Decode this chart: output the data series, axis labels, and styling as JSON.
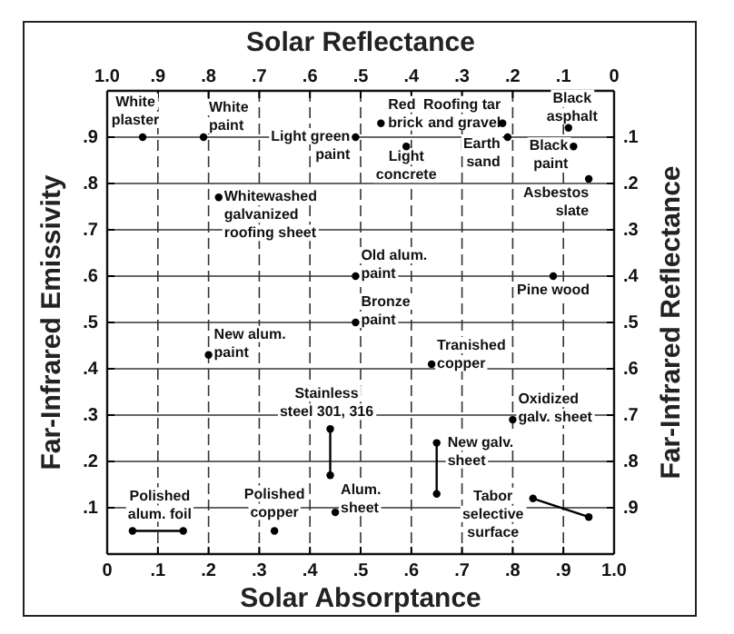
{
  "chart_data": {
    "type": "scatter",
    "xlabel": "Solar Absorptance",
    "x2label": "Solar Reflectance",
    "ylabel": "Far-Infrared Emissivity",
    "y2label": "Far-Infrared Reflectance",
    "xlim": [
      0,
      1
    ],
    "xticks": [
      {
        "value": 0,
        "label": "0"
      },
      {
        "value": 0.1,
        "label": ".1"
      },
      {
        "value": 0.2,
        "label": ".2"
      },
      {
        "value": 0.3,
        "label": ".3"
      },
      {
        "value": 0.4,
        "label": ".4"
      },
      {
        "value": 0.5,
        "label": ".5"
      },
      {
        "value": 0.6,
        "label": ".6"
      },
      {
        "value": 0.7,
        "label": ".7"
      },
      {
        "value": 0.8,
        "label": ".8"
      },
      {
        "value": 0.9,
        "label": ".9"
      },
      {
        "value": 1,
        "label": "1.0"
      }
    ],
    "x2lim": [
      1,
      0
    ],
    "x2ticks": [
      {
        "value": 1,
        "label": "1.0"
      },
      {
        "value": 0.9,
        "label": ".9"
      },
      {
        "value": 0.8,
        "label": ".8"
      },
      {
        "value": 0.7,
        "label": ".7"
      },
      {
        "value": 0.6,
        "label": ".6"
      },
      {
        "value": 0.5,
        "label": ".5"
      },
      {
        "value": 0.4,
        "label": ".4"
      },
      {
        "value": 0.3,
        "label": ".3"
      },
      {
        "value": 0.2,
        "label": ".2"
      },
      {
        "value": 0.1,
        "label": ".1"
      },
      {
        "value": 0,
        "label": "0"
      }
    ],
    "ylim": [
      0,
      1
    ],
    "yticks": [
      {
        "value": 0.1,
        "label": ".1"
      },
      {
        "value": 0.2,
        "label": ".2"
      },
      {
        "value": 0.3,
        "label": ".3"
      },
      {
        "value": 0.4,
        "label": ".4"
      },
      {
        "value": 0.5,
        "label": ".5"
      },
      {
        "value": 0.6,
        "label": ".6"
      },
      {
        "value": 0.7,
        "label": ".7"
      },
      {
        "value": 0.8,
        "label": ".8"
      },
      {
        "value": 0.9,
        "label": ".9"
      }
    ],
    "y2lim": [
      1,
      0
    ],
    "y2ticks": [
      {
        "value": 0.1,
        "label": ".1"
      },
      {
        "value": 0.2,
        "label": ".2"
      },
      {
        "value": 0.3,
        "label": ".3"
      },
      {
        "value": 0.4,
        "label": ".4"
      },
      {
        "value": 0.5,
        "label": ".5"
      },
      {
        "value": 0.6,
        "label": ".6"
      },
      {
        "value": 0.7,
        "label": ".7"
      },
      {
        "value": 0.8,
        "label": ".8"
      },
      {
        "value": 0.9,
        "label": ".9"
      }
    ],
    "grid": true,
    "marker": "circle",
    "series": [
      {
        "color": "#000000",
        "x": [
          0.07,
          0.19,
          0.49,
          0.54,
          0.59,
          0.78,
          0.91,
          0.79,
          0.92,
          0.95,
          0.22,
          0.49,
          0.88,
          0.49,
          0.2,
          0.64,
          0.8,
          0.33,
          0.45
        ],
        "values": [
          0.9,
          0.9,
          0.9,
          0.93,
          0.88,
          0.93,
          0.92,
          0.9,
          0.88,
          0.81,
          0.77,
          0.6,
          0.6,
          0.5,
          0.43,
          0.41,
          0.29,
          0.05,
          0.09
        ]
      },
      {
        "type": "line",
        "color": "#000000",
        "x": [
          0.44,
          0.44
        ],
        "values": [
          0.27,
          0.17
        ]
      },
      {
        "type": "line",
        "color": "#000000",
        "x": [
          0.65,
          0.65
        ],
        "values": [
          0.24,
          0.13
        ]
      },
      {
        "type": "line",
        "color": "#000000",
        "x": [
          0.05,
          0.15
        ],
        "values": [
          0.05,
          0.05
        ]
      },
      {
        "type": "line",
        "color": "#000000",
        "x": [
          0.84,
          0.95
        ],
        "values": [
          0.12,
          0.08
        ]
      }
    ],
    "annotations": [
      {
        "text": "White\nplaster",
        "x": 0.07,
        "y": 0.9
      },
      {
        "text": "White\npaint",
        "x": 0.19,
        "y": 0.9
      },
      {
        "text": "Light green\npaint",
        "x": 0.49,
        "y": 0.9
      },
      {
        "text": "Red\nbrick",
        "x": 0.54,
        "y": 0.93
      },
      {
        "text": "Light\nconcrete",
        "x": 0.59,
        "y": 0.88
      },
      {
        "text": "Roofing tar\nand gravel",
        "x": 0.78,
        "y": 0.93
      },
      {
        "text": "Black\nasphalt",
        "x": 0.91,
        "y": 0.92
      },
      {
        "text": "Earth\nsand",
        "x": 0.79,
        "y": 0.9
      },
      {
        "text": "Black\npaint",
        "x": 0.92,
        "y": 0.88
      },
      {
        "text": "Asbestos\nslate",
        "x": 0.95,
        "y": 0.81
      },
      {
        "text": "Whitewashed\ngalvanized\nroofing sheet",
        "x": 0.22,
        "y": 0.77
      },
      {
        "text": "Old alum.\npaint",
        "x": 0.49,
        "y": 0.6
      },
      {
        "text": "Pine wood",
        "x": 0.88,
        "y": 0.6
      },
      {
        "text": "Bronze\npaint",
        "x": 0.49,
        "y": 0.5
      },
      {
        "text": "New alum.\npaint",
        "x": 0.2,
        "y": 0.43
      },
      {
        "text": "Tranished\ncopper",
        "x": 0.64,
        "y": 0.41
      },
      {
        "text": "Stainless\nsteel 301, 316",
        "x": 0.44,
        "y": 0.27
      },
      {
        "text": "Oxidized\ngalv. sheet",
        "x": 0.8,
        "y": 0.29
      },
      {
        "text": "New galv.\nsheet",
        "x": 0.65,
        "y": 0.24
      },
      {
        "text": "Polished\nalum. foil",
        "x": 0.05,
        "y": 0.05
      },
      {
        "text": "Polished\ncopper",
        "x": 0.33,
        "y": 0.05
      },
      {
        "text": "Alum.\nsheet",
        "x": 0.45,
        "y": 0.09
      },
      {
        "text": "Tabor\nselective\nsurface",
        "x": 0.84,
        "y": 0.12
      }
    ]
  }
}
